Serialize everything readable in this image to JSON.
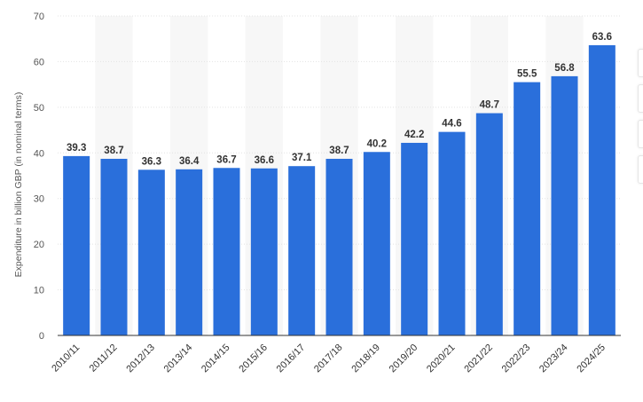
{
  "chart_data": {
    "type": "bar",
    "title": "",
    "xlabel": "",
    "ylabel": "Expenditure in billion GBP (in nominal terms)",
    "categories": [
      "2010/11",
      "2011/12",
      "2012/13",
      "2013/14",
      "2014/15",
      "2015/16",
      "2016/17",
      "2017/18",
      "2018/19",
      "2019/20",
      "2020/21",
      "2021/22",
      "2022/23",
      "2023/24",
      "2024/25"
    ],
    "series": [
      {
        "values": [
          39.3,
          38.7,
          36.3,
          36.4,
          36.7,
          36.6,
          37.1,
          38.7,
          40.2,
          42.2,
          44.6,
          48.7,
          55.5,
          56.8,
          63.6
        ]
      }
    ],
    "ylim": [
      0,
      70
    ],
    "yticks": [
      0,
      10,
      20,
      30,
      40,
      50,
      60,
      70
    ],
    "grid": true,
    "legend": "none",
    "bar_color": "#2a6fdb",
    "data_labels": true
  }
}
